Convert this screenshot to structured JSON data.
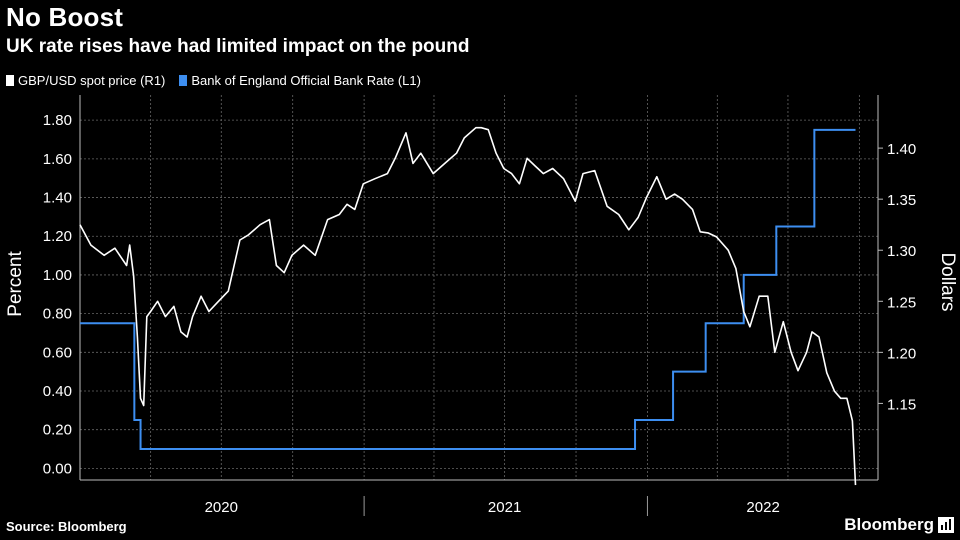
{
  "title": "No Boost",
  "subtitle": "UK rate rises have had limited impact on the pound",
  "source": "Source: Bloomberg",
  "brand": "Bloomberg",
  "colors": {
    "background": "#000000",
    "spot": "#ffffff",
    "rate": "#3d8ef0",
    "grid": "#666666"
  },
  "chart_data": {
    "type": "line",
    "grid": true,
    "legend_position": "top-left",
    "series": [
      {
        "name": "GBP/USD spot price (R1)",
        "axis": "right",
        "color": "#ffffff",
        "x": [
          "2020-01-01",
          "2020-01-15",
          "2020-02-01",
          "2020-02-15",
          "2020-03-01",
          "2020-03-05",
          "2020-03-10",
          "2020-03-15",
          "2020-03-19",
          "2020-03-23",
          "2020-03-27",
          "2020-04-01",
          "2020-04-10",
          "2020-04-20",
          "2020-05-01",
          "2020-05-10",
          "2020-05-18",
          "2020-05-25",
          "2020-06-05",
          "2020-06-15",
          "2020-06-25",
          "2020-07-10",
          "2020-07-25",
          "2020-08-05",
          "2020-08-20",
          "2020-09-01",
          "2020-09-10",
          "2020-09-20",
          "2020-09-30",
          "2020-10-15",
          "2020-10-30",
          "2020-11-15",
          "2020-11-30",
          "2020-12-10",
          "2020-12-20",
          "2020-12-31",
          "2021-01-15",
          "2021-01-31",
          "2021-02-10",
          "2021-02-24",
          "2021-03-05",
          "2021-03-15",
          "2021-03-31",
          "2021-04-15",
          "2021-04-30",
          "2021-05-10",
          "2021-05-25",
          "2021-06-01",
          "2021-06-10",
          "2021-06-20",
          "2021-06-30",
          "2021-07-10",
          "2021-07-20",
          "2021-07-30",
          "2021-08-10",
          "2021-08-20",
          "2021-09-01",
          "2021-09-15",
          "2021-09-30",
          "2021-10-10",
          "2021-10-25",
          "2021-11-10",
          "2021-11-25",
          "2021-12-08",
          "2021-12-20",
          "2021-12-31",
          "2022-01-13",
          "2022-01-25",
          "2022-02-05",
          "2022-02-15",
          "2022-02-28",
          "2022-03-10",
          "2022-03-20",
          "2022-03-31",
          "2022-04-15",
          "2022-04-25",
          "2022-05-05",
          "2022-05-13",
          "2022-05-25",
          "2022-06-05",
          "2022-06-14",
          "2022-06-25",
          "2022-07-05",
          "2022-07-14",
          "2022-07-25",
          "2022-08-01",
          "2022-08-10",
          "2022-08-20",
          "2022-08-30",
          "2022-09-07",
          "2022-09-15",
          "2022-09-22",
          "2022-09-26"
        ],
        "values": [
          1.325,
          1.305,
          1.295,
          1.302,
          1.285,
          1.305,
          1.275,
          1.215,
          1.155,
          1.148,
          1.235,
          1.24,
          1.25,
          1.235,
          1.245,
          1.22,
          1.215,
          1.235,
          1.255,
          1.24,
          1.248,
          1.26,
          1.31,
          1.315,
          1.325,
          1.33,
          1.285,
          1.278,
          1.295,
          1.305,
          1.295,
          1.33,
          1.335,
          1.345,
          1.34,
          1.365,
          1.37,
          1.375,
          1.39,
          1.415,
          1.385,
          1.395,
          1.375,
          1.385,
          1.395,
          1.41,
          1.42,
          1.42,
          1.418,
          1.395,
          1.38,
          1.375,
          1.365,
          1.39,
          1.382,
          1.375,
          1.38,
          1.37,
          1.348,
          1.375,
          1.378,
          1.343,
          1.335,
          1.32,
          1.332,
          1.352,
          1.372,
          1.35,
          1.355,
          1.35,
          1.34,
          1.318,
          1.317,
          1.313,
          1.3,
          1.282,
          1.24,
          1.225,
          1.255,
          1.255,
          1.2,
          1.23,
          1.2,
          1.182,
          1.2,
          1.22,
          1.215,
          1.18,
          1.162,
          1.155,
          1.155,
          1.133,
          1.07
        ]
      },
      {
        "name": "Bank of England Official Bank Rate (L1)",
        "axis": "left",
        "color": "#3d8ef0",
        "step": true,
        "x": [
          "2020-01-01",
          "2020-03-11",
          "2020-03-19",
          "2021-12-16",
          "2022-02-03",
          "2022-03-17",
          "2022-05-05",
          "2022-06-16",
          "2022-08-04",
          "2022-09-26"
        ],
        "values": [
          0.75,
          0.25,
          0.1,
          0.25,
          0.5,
          0.75,
          1.0,
          1.25,
          1.75,
          1.75
        ]
      }
    ],
    "y_left": {
      "label": "Percent",
      "ticks": [
        "0.00",
        "0.20",
        "0.40",
        "0.60",
        "0.80",
        "1.00",
        "1.20",
        "1.40",
        "1.60",
        "1.80"
      ],
      "range": [
        -0.06,
        1.93
      ]
    },
    "y_right": {
      "label": "Dollars",
      "ticks": [
        "1.15",
        "1.20",
        "1.25",
        "1.30",
        "1.35",
        "1.40"
      ],
      "range": [
        1.075,
        1.452
      ]
    },
    "x_axis": {
      "range": [
        "2020-01-01",
        "2022-10-25"
      ],
      "labels": [
        "2020",
        "2021",
        "2022"
      ]
    }
  }
}
